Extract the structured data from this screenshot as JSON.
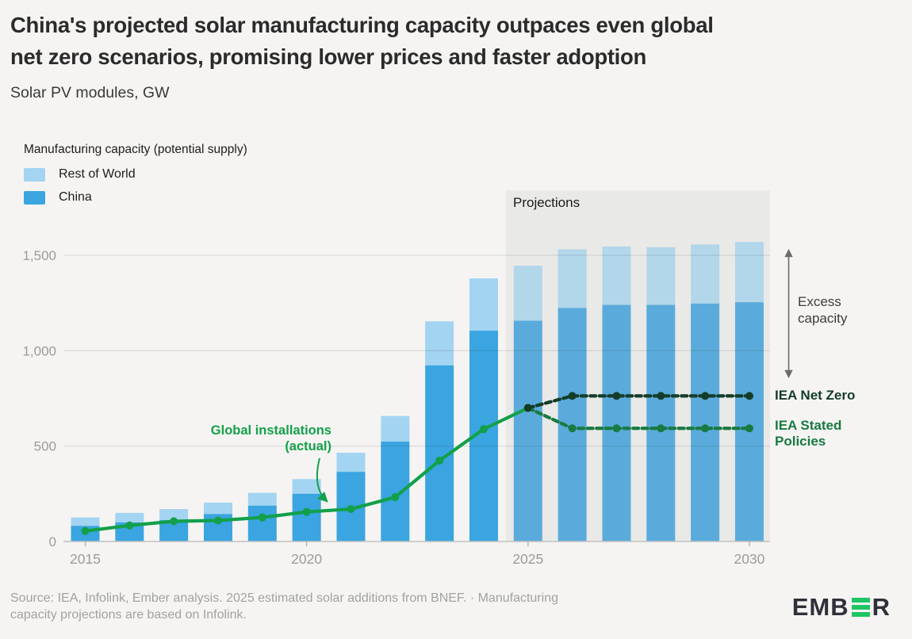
{
  "header": {
    "title_lines": [
      "China's projected solar manufacturing capacity outpaces even global",
      "net zero scenarios, promising lower prices and faster adoption"
    ],
    "subtitle": "Solar PV modules, GW"
  },
  "legend": {
    "title": "Manufacturing capacity (potential supply)",
    "items": [
      {
        "label": "Rest of World",
        "color": "#a3d4f1"
      },
      {
        "label": "China",
        "color": "#3aa5e0"
      }
    ]
  },
  "annotations": {
    "projections_label": "Projections",
    "installations_lines": [
      "Global installations",
      "(actual)"
    ],
    "excess_lines": [
      "Excess",
      "capacity"
    ],
    "net_zero_label": "IEA Net Zero",
    "stated_policies_lines": [
      "IEA Stated",
      "Policies"
    ]
  },
  "footer": {
    "source_lines": [
      "Source: IEA, Infolink, Ember analysis. 2025 estimated solar additions from BNEF. · Manufacturing",
      "capacity projections are based on Infolink."
    ],
    "logo_text_start": "EMB",
    "logo_text_end": "R"
  },
  "chart_data": {
    "type": "bar+line",
    "title": "China's projected solar manufacturing capacity outpaces even global net zero scenarios, promising lower prices and faster adoption",
    "unit_label": "Solar PV modules, GW",
    "years": [
      2015,
      2016,
      2017,
      2018,
      2019,
      2020,
      2021,
      2022,
      2023,
      2024,
      2025,
      2026,
      2027,
      2028,
      2029,
      2030
    ],
    "series": [
      {
        "name": "China",
        "type": "bar",
        "stack": "capacity",
        "values": [
          82,
          100,
          112,
          144,
          188,
          250,
          365,
          524,
          923,
          1105,
          1157,
          1224,
          1240,
          1240,
          1247,
          1254
        ]
      },
      {
        "name": "Rest of World",
        "type": "bar",
        "stack": "capacity",
        "values": [
          44,
          50,
          58,
          60,
          67,
          77,
          100,
          134,
          231,
          274,
          288,
          307,
          306,
          302,
          310,
          316
        ]
      }
    ],
    "lines": [
      {
        "id": "installations",
        "name": "Global installations (actual)",
        "style": "solid",
        "color": "#13a04a",
        "x": [
          2015,
          2016,
          2017,
          2018,
          2019,
          2020,
          2021,
          2022,
          2023,
          2024,
          2025
        ],
        "values": [
          55,
          84,
          106,
          110,
          126,
          155,
          170,
          232,
          424,
          589,
          700
        ]
      },
      {
        "id": "stated-policies",
        "name": "IEA Stated Policies",
        "style": "dashed",
        "color": "#187a42",
        "x": [
          2025,
          2026,
          2027,
          2028,
          2029,
          2030
        ],
        "values": [
          700,
          593,
          593,
          593,
          593,
          593
        ]
      },
      {
        "id": "net-zero",
        "name": "IEA Net Zero",
        "style": "dashed",
        "color": "#143c28",
        "x": [
          2025,
          2026,
          2027,
          2028,
          2029,
          2030
        ],
        "values": [
          700,
          763,
          763,
          763,
          763,
          763
        ]
      }
    ],
    "projections_start": 2024.5,
    "ylim": [
      0,
      1600
    ],
    "yticks": [
      0,
      500,
      1000,
      1500
    ],
    "ytick_labels": [
      "0",
      "500",
      "1,000",
      "1,500"
    ],
    "xticks": [
      2015,
      2020,
      2025,
      2030
    ],
    "grid": true,
    "legend_position": "top-left",
    "colors": {
      "china": "#3aa5e0",
      "rest_of_world": "#a3d4f1",
      "china_projected": "#5aabdb",
      "rest_of_world_projected": "#b2d6ea",
      "installations": "#13a04a",
      "net_zero": "#143c28",
      "stated_policies": "#187a42",
      "projection_region": "#e9e9e7",
      "background": "#f5f4f2",
      "gridline": "rgba(60,60,60,0.13)",
      "baseline": "#c2c2c2",
      "tick": "#b3b3b3",
      "axis_text": "#9b9b9b",
      "arrow": "#6b6b6b",
      "logo_green": "#1fc564"
    }
  }
}
